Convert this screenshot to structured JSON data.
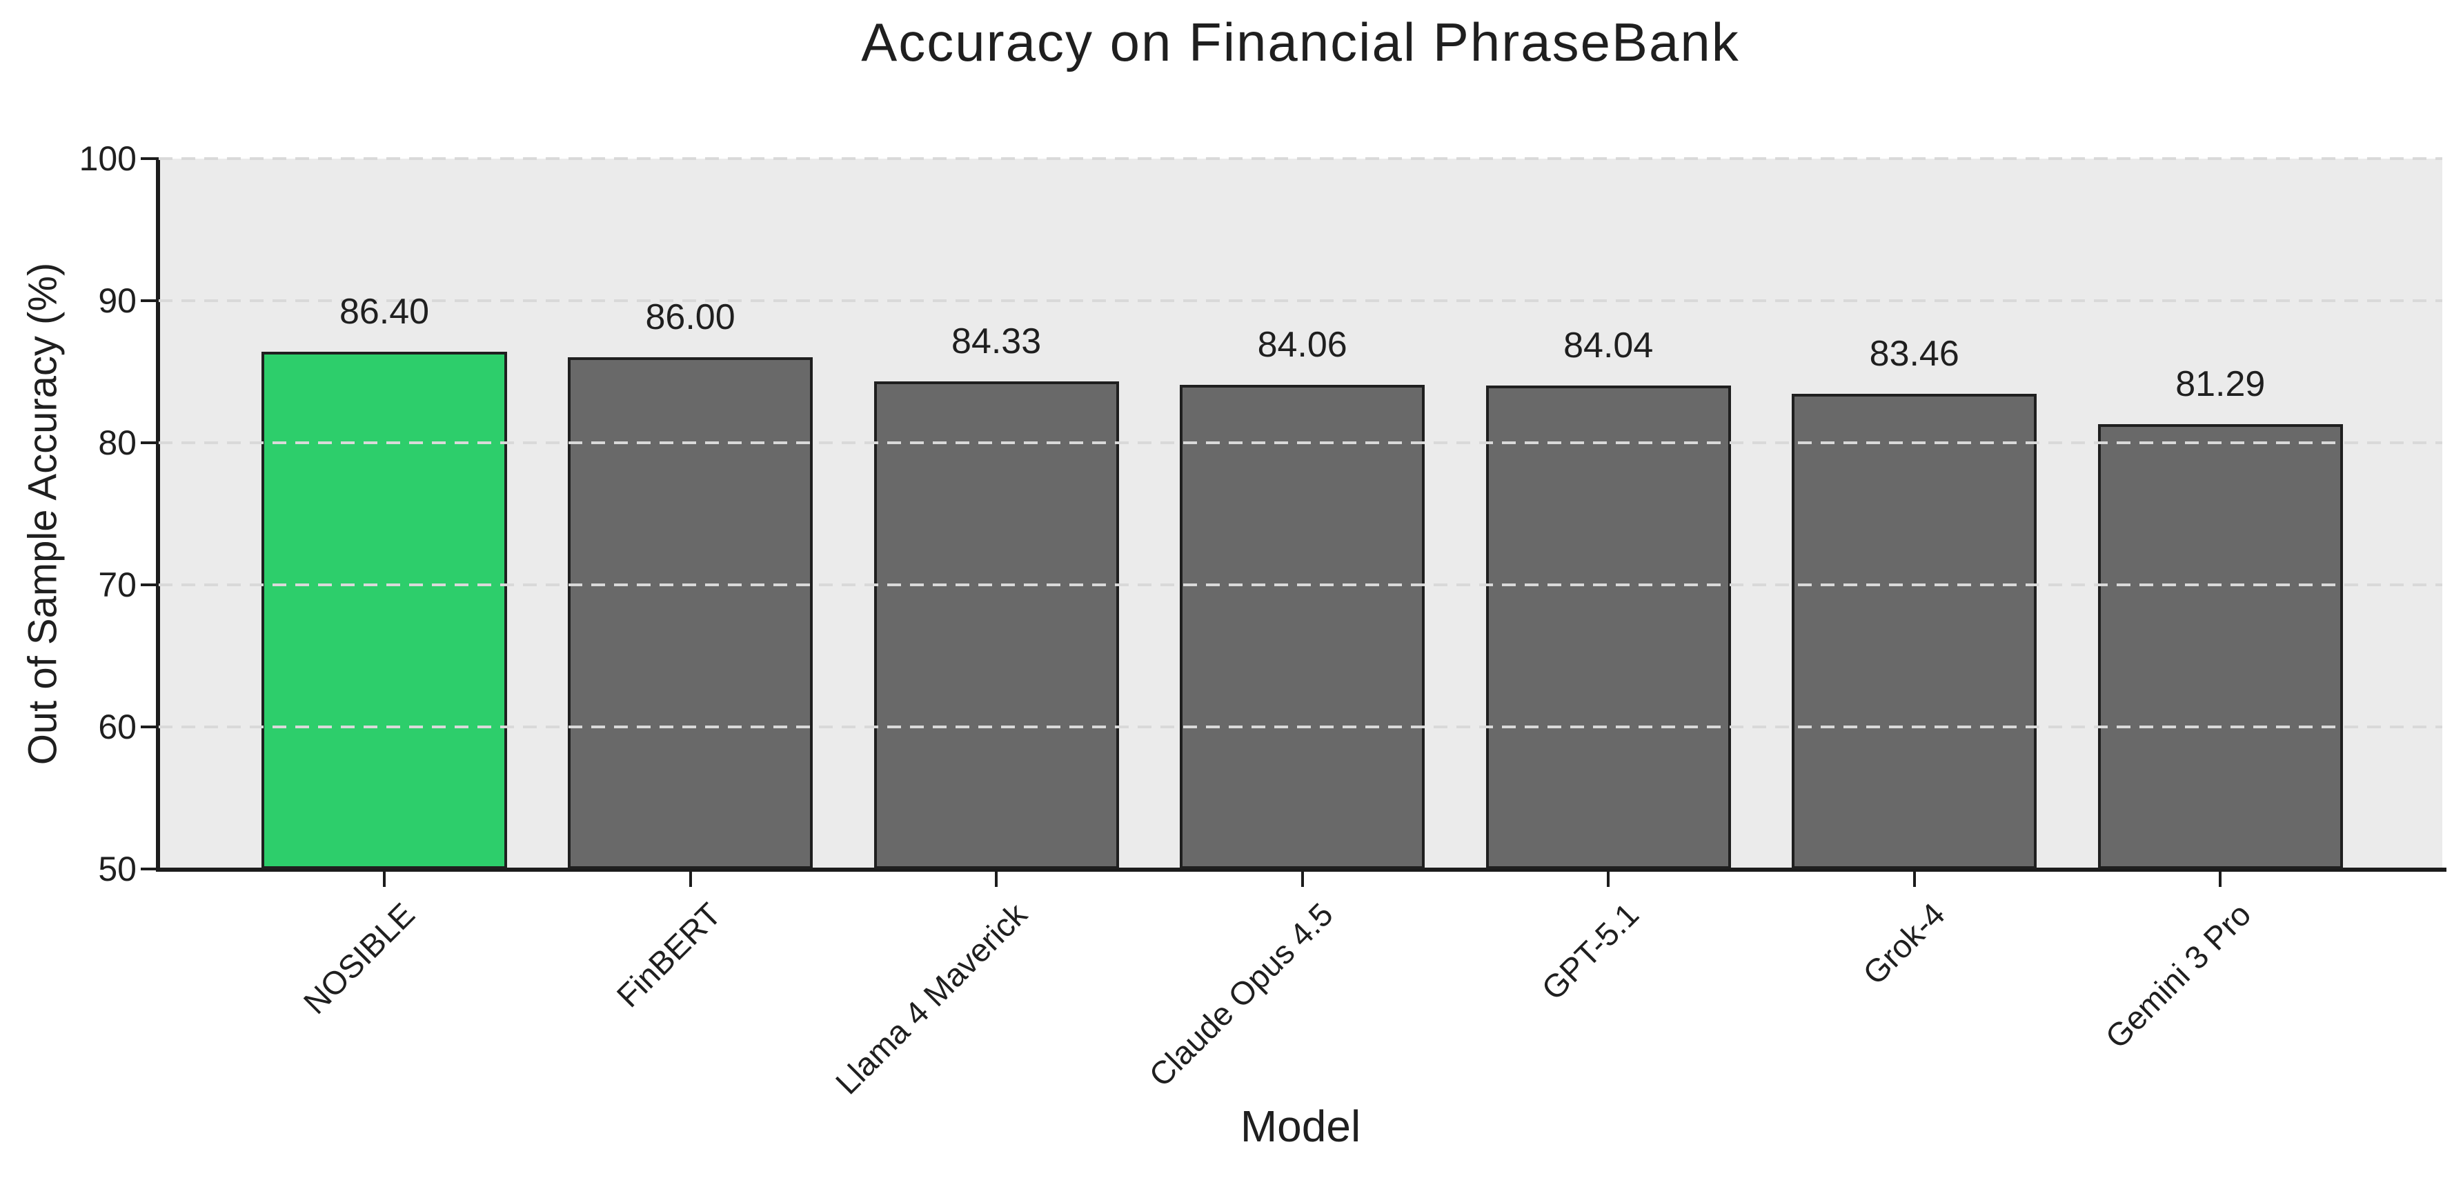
{
  "chart_data": {
    "type": "bar",
    "title": "Accuracy on Financial PhraseBank",
    "xlabel": "Model",
    "ylabel": "Out of Sample Accuracy (%)",
    "categories": [
      "NOSIBLE",
      "FinBERT",
      "Llama 4 Maverick",
      "Claude Opus 4.5",
      "GPT-5.1",
      "Grok-4",
      "Gemini 3 Pro"
    ],
    "values": [
      86.4,
      86.0,
      84.33,
      84.06,
      84.04,
      83.46,
      81.29
    ],
    "value_labels": [
      "86.40",
      "86.00",
      "84.33",
      "84.06",
      "84.04",
      "83.46",
      "81.29"
    ],
    "ylim": [
      50,
      100
    ],
    "yticks": [
      50,
      60,
      70,
      80,
      90,
      100
    ],
    "grid": "horizontal-dashed",
    "legend": "none",
    "highlight_index": 0,
    "colors": {
      "highlight_bar": "#2dce6b",
      "default_bar": "#696969",
      "bar_edge": "#1f1f1f",
      "plot_background": "#ebebeb",
      "figure_background": "#ffffff",
      "gridline": "#d9d9d9",
      "axis": "#1c1c1c",
      "text": "#1f1f1f"
    }
  }
}
